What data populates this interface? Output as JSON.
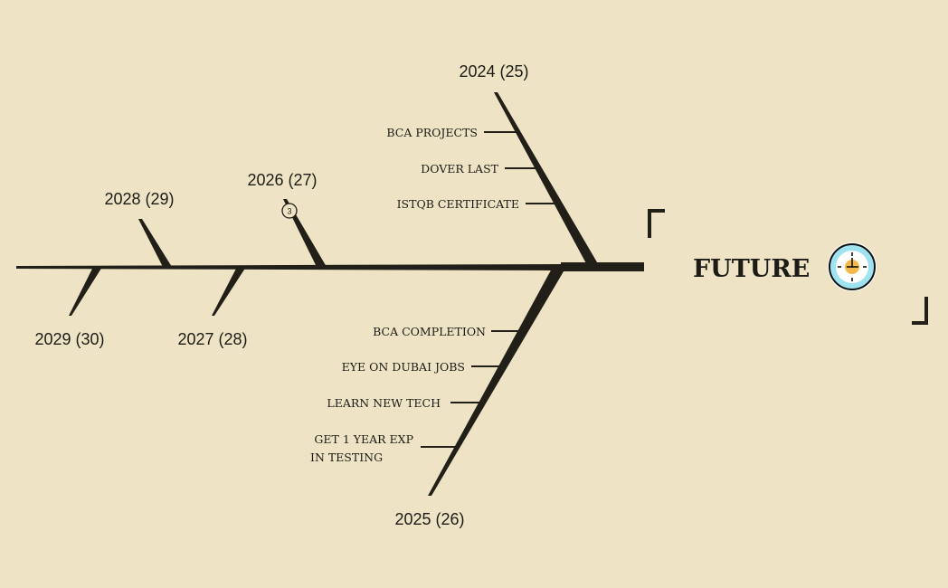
{
  "title": "FUTURE",
  "title_icon": "clock-icon",
  "colors": {
    "background": "#eee4c5",
    "ink": "#221f18",
    "clock_face": "#9ee3ef",
    "clock_center": "#f5b94a"
  },
  "bones": [
    {
      "year": "2024 (25)",
      "items": [
        "BCA PROJECTS",
        "DOVER LAST",
        "ISTQB CERTIFICATE"
      ]
    },
    {
      "year": "2025 (26)",
      "items": [
        "BCA COMPLETION",
        "EYE ON DUBAI JOBS",
        "LEARN NEW TECH",
        "GET 1 YEAR EXP",
        "IN TESTING"
      ]
    },
    {
      "year": "2026 (27)",
      "badge": "3"
    },
    {
      "year": "2027 (28)"
    },
    {
      "year": "2028 (29)"
    },
    {
      "year": "2029 (30)"
    }
  ]
}
